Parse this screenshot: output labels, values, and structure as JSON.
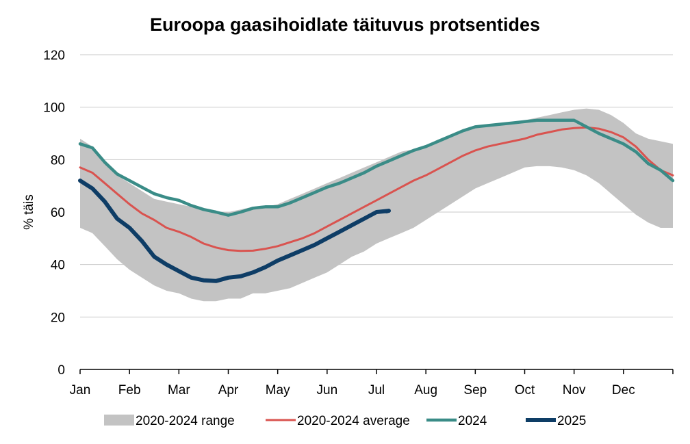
{
  "chart_data": {
    "type": "area",
    "title": "Euroopa gaasihoidlate täituvus protsentides",
    "ylabel": "% täis",
    "xlabel": "",
    "ylim": [
      0,
      120
    ],
    "yticks": [
      0,
      20,
      40,
      60,
      80,
      100,
      120
    ],
    "months": [
      "Jan",
      "Feb",
      "Mar",
      "Apr",
      "May",
      "Jun",
      "Jul",
      "Aug",
      "Sep",
      "Oct",
      "Nov",
      "Dec"
    ],
    "x_unit_note": "x values are months of year (1 = start of January, 13 = end of December)",
    "grid": "horizontal",
    "legend_position": "bottom",
    "colors": {
      "range": "#c3c3c3",
      "average": "#d9534f",
      "y2024": "#3a8c87",
      "y2025": "#0e3d66"
    },
    "legend": [
      {
        "key": "range",
        "label": "2020-2024 range"
      },
      {
        "key": "average",
        "label": "2020-2024 average"
      },
      {
        "key": "y2024",
        "label": "2024"
      },
      {
        "key": "y2025",
        "label": "2025"
      }
    ],
    "range": {
      "x": [
        1.0,
        1.25,
        1.5,
        1.75,
        2.0,
        2.25,
        2.5,
        2.75,
        3.0,
        3.25,
        3.5,
        3.75,
        4.0,
        4.25,
        4.5,
        4.75,
        5.0,
        5.25,
        5.5,
        5.75,
        6.0,
        6.25,
        6.5,
        6.75,
        7.0,
        7.25,
        7.5,
        7.75,
        8.0,
        8.25,
        8.5,
        8.75,
        9.0,
        9.25,
        9.5,
        9.75,
        10.0,
        10.25,
        10.5,
        10.75,
        11.0,
        11.25,
        11.5,
        11.75,
        12.0,
        12.25,
        12.5,
        12.75,
        13.0
      ],
      "upper": [
        88,
        85,
        79,
        74,
        71,
        68,
        65,
        64,
        63,
        62,
        61,
        60,
        60,
        61,
        62,
        62,
        63,
        65,
        67,
        69,
        71,
        73,
        75,
        77,
        79,
        81,
        83,
        84,
        85,
        87,
        89,
        91,
        92.5,
        93,
        93.5,
        94,
        95,
        96,
        97,
        98,
        99,
        99.5,
        99,
        97,
        94,
        90,
        88,
        87,
        86
      ],
      "lower": [
        54,
        52,
        47,
        42,
        38,
        35,
        32,
        30,
        29,
        27,
        26,
        26,
        27,
        27,
        29,
        29,
        30,
        31,
        33,
        35,
        37,
        40,
        43,
        45,
        48,
        50,
        52,
        54,
        57,
        60,
        63,
        66,
        69,
        71,
        73,
        75,
        77,
        77.5,
        77.5,
        77,
        76,
        74,
        71,
        67,
        63,
        59,
        56,
        54,
        54
      ]
    },
    "series": [
      {
        "key": "average",
        "name": "2020-2024 average",
        "x": [
          1.0,
          1.25,
          1.5,
          1.75,
          2.0,
          2.25,
          2.5,
          2.75,
          3.0,
          3.25,
          3.5,
          3.75,
          4.0,
          4.25,
          4.5,
          4.75,
          5.0,
          5.25,
          5.5,
          5.75,
          6.0,
          6.25,
          6.5,
          6.75,
          7.0,
          7.25,
          7.5,
          7.75,
          8.0,
          8.25,
          8.5,
          8.75,
          9.0,
          9.25,
          9.5,
          9.75,
          10.0,
          10.25,
          10.5,
          10.75,
          11.0,
          11.25,
          11.5,
          11.75,
          12.0,
          12.25,
          12.5,
          12.75,
          13.0
        ],
        "values": [
          77,
          75,
          71,
          67,
          63,
          59.5,
          57,
          54,
          52.5,
          50.5,
          48,
          46.5,
          45.5,
          45.2,
          45.3,
          46,
          47,
          48.5,
          50,
          52,
          54.5,
          57,
          59.5,
          62,
          64.5,
          67,
          69.5,
          72,
          74,
          76.5,
          79,
          81.5,
          83.5,
          85,
          86,
          87,
          88,
          89.5,
          90.5,
          91.5,
          92,
          92.3,
          91.8,
          90.5,
          88.5,
          85,
          80,
          76,
          74
        ]
      },
      {
        "key": "y2024",
        "name": "2024",
        "x": [
          1.0,
          1.25,
          1.5,
          1.75,
          2.0,
          2.25,
          2.5,
          2.75,
          3.0,
          3.25,
          3.5,
          3.75,
          4.0,
          4.25,
          4.5,
          4.75,
          5.0,
          5.25,
          5.5,
          5.75,
          6.0,
          6.25,
          6.5,
          6.75,
          7.0,
          7.25,
          7.5,
          7.75,
          8.0,
          8.25,
          8.5,
          8.75,
          9.0,
          9.25,
          9.5,
          9.75,
          10.0,
          10.25,
          10.5,
          10.75,
          11.0,
          11.25,
          11.5,
          11.75,
          12.0,
          12.25,
          12.5,
          12.75,
          13.0
        ],
        "values": [
          86,
          84.5,
          79,
          74.5,
          72,
          69.5,
          67,
          65.5,
          64.5,
          62.5,
          61,
          60,
          58.8,
          60,
          61.5,
          62,
          62,
          63.5,
          65.5,
          67.5,
          69.5,
          71,
          73,
          75,
          77.5,
          79.5,
          81.5,
          83.5,
          85,
          87,
          89,
          91,
          92.5,
          93,
          93.5,
          94,
          94.5,
          95,
          95,
          95,
          95,
          92.5,
          90,
          88,
          86,
          83,
          78.5,
          76,
          72
        ]
      },
      {
        "key": "y2025",
        "name": "2025",
        "x": [
          1.0,
          1.25,
          1.5,
          1.75,
          2.0,
          2.25,
          2.5,
          2.75,
          3.0,
          3.25,
          3.5,
          3.75,
          4.0,
          4.25,
          4.5,
          4.75,
          5.0,
          5.25,
          5.5,
          5.75,
          6.0,
          6.25,
          6.5,
          6.75,
          7.0,
          7.25,
          7.2
        ],
        "values": [
          72,
          69,
          64,
          57.5,
          54,
          49,
          43,
          40,
          37.5,
          35,
          34,
          33.7,
          35,
          35.5,
          37,
          39,
          41.5,
          43.5,
          45.5,
          47.5,
          50,
          52.5,
          55,
          57.5,
          60,
          60.5,
          60.3
        ]
      }
    ]
  }
}
